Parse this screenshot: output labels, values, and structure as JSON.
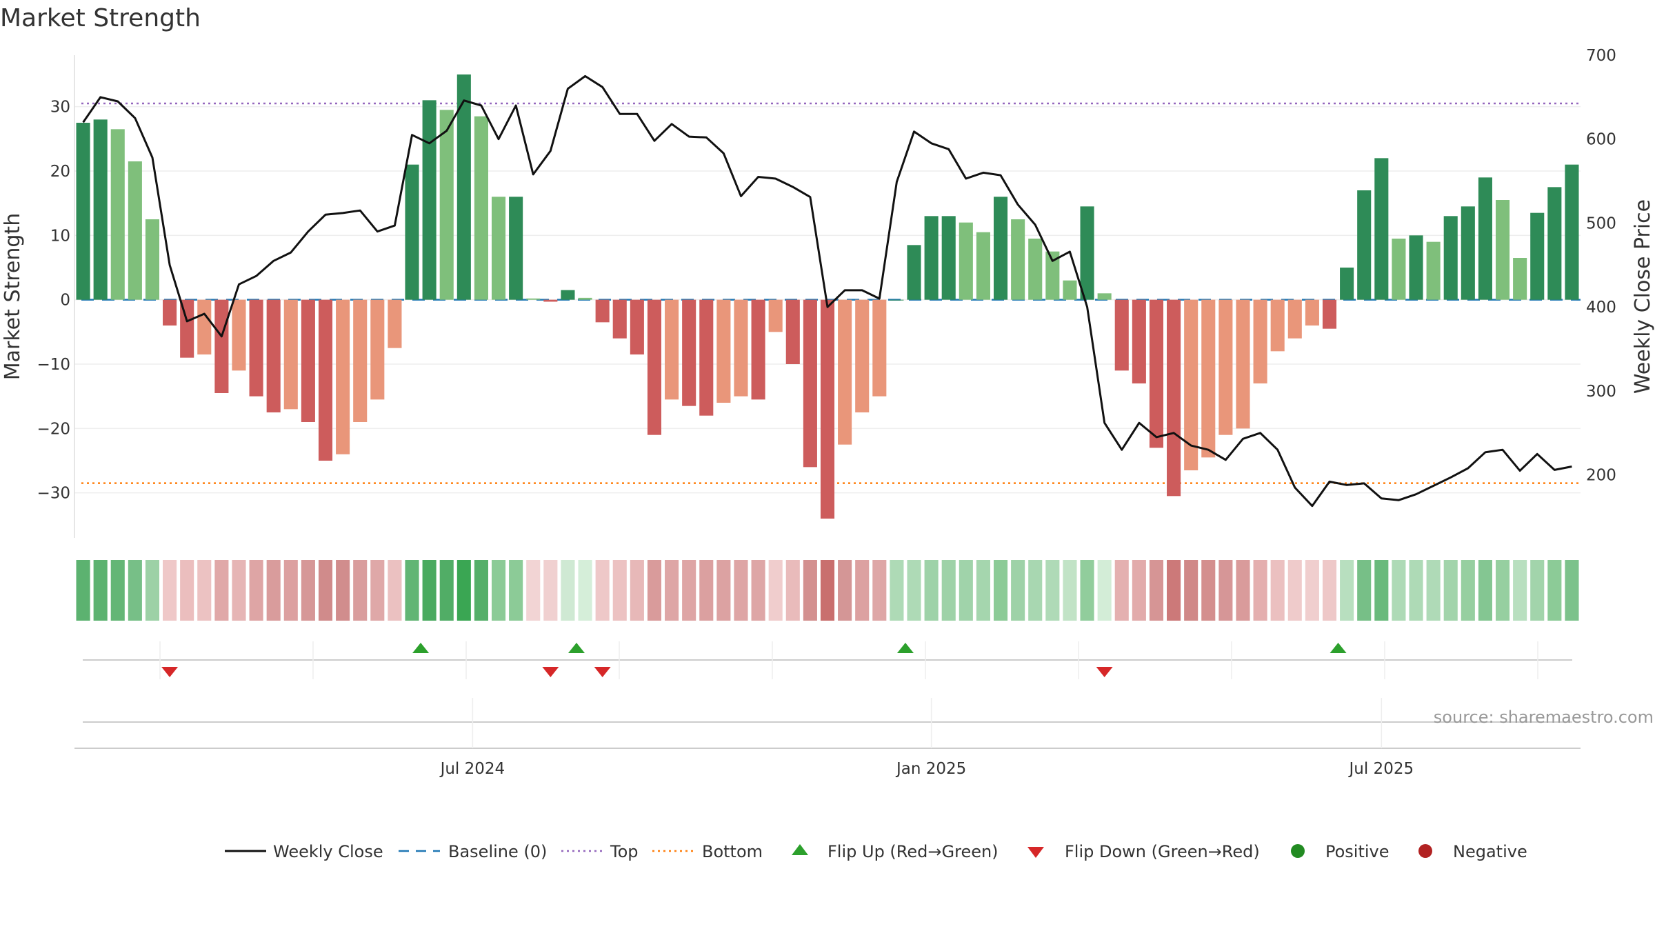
{
  "chart_data": {
    "type": "bar",
    "title": "Market Strength",
    "ylabel_left": "Market Strength",
    "ylabel_right": "Weekly Close Price",
    "ylim_left": [
      -37,
      38
    ],
    "ylim_right": [
      125,
      700
    ],
    "y_ticks_left": [
      30,
      20,
      10,
      0,
      -10,
      -20,
      -30
    ],
    "y_tick_labels_left": [
      "30",
      "20",
      "10",
      "0",
      "−10",
      "−20",
      "−30"
    ],
    "y_ticks_right": [
      700,
      600,
      500,
      400,
      300,
      200
    ],
    "y_tick_labels_right": [
      "700",
      "600",
      "500",
      "400",
      "300",
      "200"
    ],
    "x_tick_labels": [
      "Jul 2024",
      "Jan 2025",
      "Jul 2025"
    ],
    "x_tick_indices": [
      22.5,
      49,
      75
    ],
    "top_level": 30.5,
    "bottom_level": -28.5,
    "strength": [
      27.5,
      28,
      26.5,
      21.5,
      12.5,
      -4,
      -9,
      -8.5,
      -14.5,
      -11,
      -15,
      -17.5,
      -17,
      -19,
      -25,
      -24,
      -19,
      -15.5,
      -7.5,
      21,
      31,
      29.5,
      35,
      28.5,
      16,
      16,
      0.2,
      -0.3,
      1.5,
      0.3,
      -3.5,
      -6,
      -8.5,
      -21,
      -15.5,
      -16.5,
      -18,
      -16,
      -15,
      -15.5,
      -5,
      -10,
      -26,
      -34,
      -22.5,
      -17.5,
      -15,
      0,
      8.5,
      13,
      13,
      12,
      10.5,
      16,
      12.5,
      9.5,
      7.5,
      3,
      14.5,
      1,
      -11,
      -13,
      -23,
      -30.5,
      -26.5,
      -24.5,
      -21,
      -20,
      -13,
      -8,
      -6,
      -4,
      -4.5,
      5,
      17,
      22,
      9.5,
      10,
      9,
      13,
      14.5,
      19,
      15.5,
      6.5,
      13.5,
      17.5,
      21
    ],
    "weekly_close": [
      620,
      650,
      645,
      625,
      578,
      450,
      383,
      392,
      365,
      427,
      437,
      455,
      465,
      490,
      510,
      512,
      515,
      490,
      497,
      605,
      595,
      610,
      646,
      640,
      600,
      640,
      558,
      586,
      660,
      675,
      662,
      630,
      630,
      598,
      618,
      603,
      602,
      583,
      532,
      555,
      553,
      543,
      531,
      400,
      420,
      420,
      410,
      549,
      609,
      595,
      588,
      553,
      560,
      557,
      522,
      498,
      455,
      466,
      400,
      262,
      230,
      262,
      245,
      250,
      235,
      230,
      218,
      243,
      250,
      230,
      185,
      163,
      192,
      188,
      190,
      172,
      170,
      177,
      187,
      197,
      208,
      227,
      230,
      205,
      225,
      206,
      210
    ],
    "heat_colors": [
      "#5cb270",
      "#5cb270",
      "#64b676",
      "#77bf87",
      "#9dd1a6",
      "#efc8c8",
      "#ebbebe",
      "#ecc2c2",
      "#e0a8a8",
      "#e6b5b5",
      "#dea5a5",
      "#d99c9c",
      "#dca0a0",
      "#d69797",
      "#d08b8b",
      "#d18d8d",
      "#d99d9d",
      "#dfa8a8",
      "#ebc1c1",
      "#62b574",
      "#4aaa60",
      "#51ad66",
      "#3aa653",
      "#55af69",
      "#8ccb97",
      "#8ccb97",
      "#f2d4d4",
      "#f0d0d0",
      "#cfe9d3",
      "#d5eed9",
      "#eec8c8",
      "#ecc2c2",
      "#e7b8b8",
      "#d99b9b",
      "#dea6a6",
      "#dea5a5",
      "#dba0a0",
      "#dca2a2",
      "#dea5a5",
      "#dea6a6",
      "#f0cdcd",
      "#e9bbbb",
      "#d3908f",
      "#c96f6e",
      "#d49696",
      "#dca1a1",
      "#dea6a6",
      "#aedab6",
      "#aedab6",
      "#9ed2a8",
      "#9ed2a8",
      "#a0d3aa",
      "#a5d6ae",
      "#8ccb97",
      "#9ed2a8",
      "#a8d7b1",
      "#afdab7",
      "#c1e3c6",
      "#91cd9c",
      "#d3edd7",
      "#e4b0b0",
      "#e2abab",
      "#d69595",
      "#cc7979",
      "#d08887",
      "#d48f8e",
      "#d69697",
      "#d99b9b",
      "#e4afaf",
      "#ebc0c0",
      "#efcbcb",
      "#f0cece",
      "#eec8c8",
      "#b8dfbf",
      "#77bf87",
      "#6aba7c",
      "#aedab6",
      "#aedab6",
      "#afdab7",
      "#a2d4ab",
      "#96cfa0",
      "#84c692",
      "#96cfa0",
      "#b8dfbf",
      "#a2d4ab",
      "#8ccb97",
      "#7cc28b"
    ],
    "flip_up_indices": [
      19.5,
      28.5,
      47.5,
      72.5
    ],
    "flip_down_indices": [
      5,
      27,
      30,
      59
    ],
    "legend": [
      "Weekly Close",
      "Baseline (0)",
      "Top",
      "Bottom",
      "Flip Up (Red→Green)",
      "Flip Down (Green→Red)",
      "Positive",
      "Negative"
    ],
    "source": "source: sharemaestro.com"
  },
  "colors": {
    "pos_strong": "#2e8b57",
    "pos_light": "#7fbf7b",
    "neg_strong": "#cd5c5c",
    "neg_light": "#e9967a",
    "close_line": "#111111",
    "baseline": "#1f77b4",
    "top_line": "#9467bd",
    "bottom_line": "#ff7f0e",
    "flip_up": "#2ca02c",
    "flip_down": "#d62728",
    "legend_positive": "#228b22",
    "legend_negative": "#b22222"
  }
}
